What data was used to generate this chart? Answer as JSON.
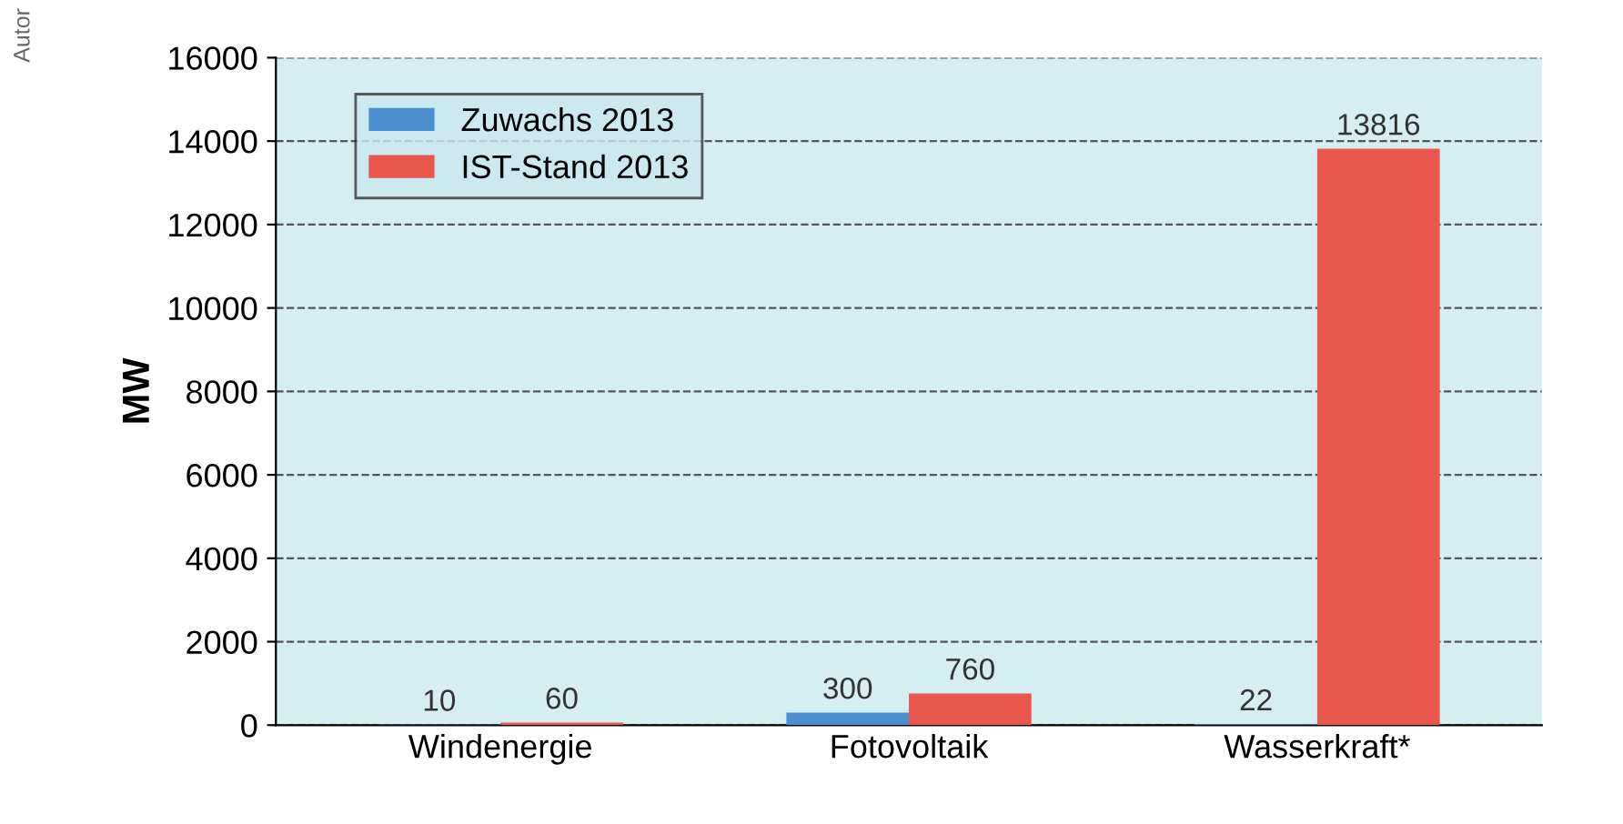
{
  "chart_data": {
    "type": "bar",
    "ylabel": "MW",
    "categories": [
      "Windenergie",
      "Fotovoltaik",
      "Wasserkraft*"
    ],
    "series": [
      {
        "name": "Zuwachs 2013",
        "color": "#4a8fd0",
        "values": [
          10,
          300,
          22
        ]
      },
      {
        "name": "IST-Stand 2013",
        "color": "#e8564e",
        "values": [
          60,
          760,
          13816
        ]
      }
    ],
    "ylim": [
      0,
      16000
    ],
    "yticks": [
      0,
      2000,
      4000,
      6000,
      8000,
      10000,
      12000,
      14000,
      16000
    ],
    "grid": "y",
    "legend": "top left",
    "data_labels": true,
    "annotations": [
      "Autor"
    ]
  }
}
